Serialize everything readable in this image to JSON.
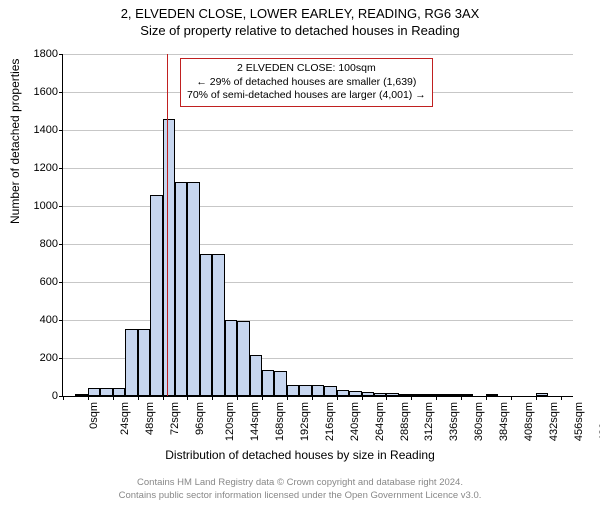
{
  "title_main": "2, ELVEDEN CLOSE, LOWER EARLEY, READING, RG6 3AX",
  "title_sub": "Size of property relative to detached houses in Reading",
  "ylabel": "Number of detached properties",
  "xlabel": "Distribution of detached houses by size in Reading",
  "annotation": {
    "line1": "2 ELVEDEN CLOSE: 100sqm",
    "line2": "← 29% of detached houses are smaller (1,639)",
    "line3": "70% of semi-detached houses are larger (4,001) →"
  },
  "footer": {
    "line1": "Contains HM Land Registry data © Crown copyright and database right 2024.",
    "line2": "Contains public sector information licensed under the Open Government Licence v3.0."
  },
  "chart": {
    "type": "histogram",
    "ylim": [
      0,
      1800
    ],
    "ytick_step": 200,
    "xlim": [
      0,
      492
    ],
    "xtick_step": 24,
    "xtick_suffix": "sqm",
    "bin_width": 12,
    "bar_color": "#c7d6ef",
    "bar_border": "#000000",
    "grid_color": "#c7c7c7",
    "marker_x": 100,
    "marker_color": "#c02020",
    "background_color": "#ffffff",
    "title_fontsize": 13,
    "label_fontsize": 12,
    "tick_fontsize": 11,
    "bins": [
      {
        "x": 0,
        "count": 0
      },
      {
        "x": 12,
        "count": 5
      },
      {
        "x": 24,
        "count": 40
      },
      {
        "x": 36,
        "count": 40
      },
      {
        "x": 48,
        "count": 40
      },
      {
        "x": 60,
        "count": 355
      },
      {
        "x": 72,
        "count": 355
      },
      {
        "x": 84,
        "count": 1060
      },
      {
        "x": 96,
        "count": 1460
      },
      {
        "x": 108,
        "count": 1125
      },
      {
        "x": 120,
        "count": 1125
      },
      {
        "x": 132,
        "count": 745
      },
      {
        "x": 144,
        "count": 745
      },
      {
        "x": 156,
        "count": 400
      },
      {
        "x": 168,
        "count": 395
      },
      {
        "x": 180,
        "count": 215
      },
      {
        "x": 192,
        "count": 135
      },
      {
        "x": 204,
        "count": 130
      },
      {
        "x": 216,
        "count": 60
      },
      {
        "x": 228,
        "count": 60
      },
      {
        "x": 240,
        "count": 60
      },
      {
        "x": 252,
        "count": 55
      },
      {
        "x": 264,
        "count": 30
      },
      {
        "x": 276,
        "count": 28
      },
      {
        "x": 288,
        "count": 22
      },
      {
        "x": 300,
        "count": 18
      },
      {
        "x": 312,
        "count": 14
      },
      {
        "x": 324,
        "count": 8
      },
      {
        "x": 336,
        "count": 12
      },
      {
        "x": 348,
        "count": 6
      },
      {
        "x": 360,
        "count": 6
      },
      {
        "x": 372,
        "count": 6
      },
      {
        "x": 384,
        "count": 4
      },
      {
        "x": 396,
        "count": 0
      },
      {
        "x": 408,
        "count": 4
      },
      {
        "x": 420,
        "count": 0
      },
      {
        "x": 432,
        "count": 0
      },
      {
        "x": 444,
        "count": 0
      },
      {
        "x": 456,
        "count": 15
      },
      {
        "x": 468,
        "count": 0
      },
      {
        "x": 480,
        "count": 0
      }
    ]
  }
}
